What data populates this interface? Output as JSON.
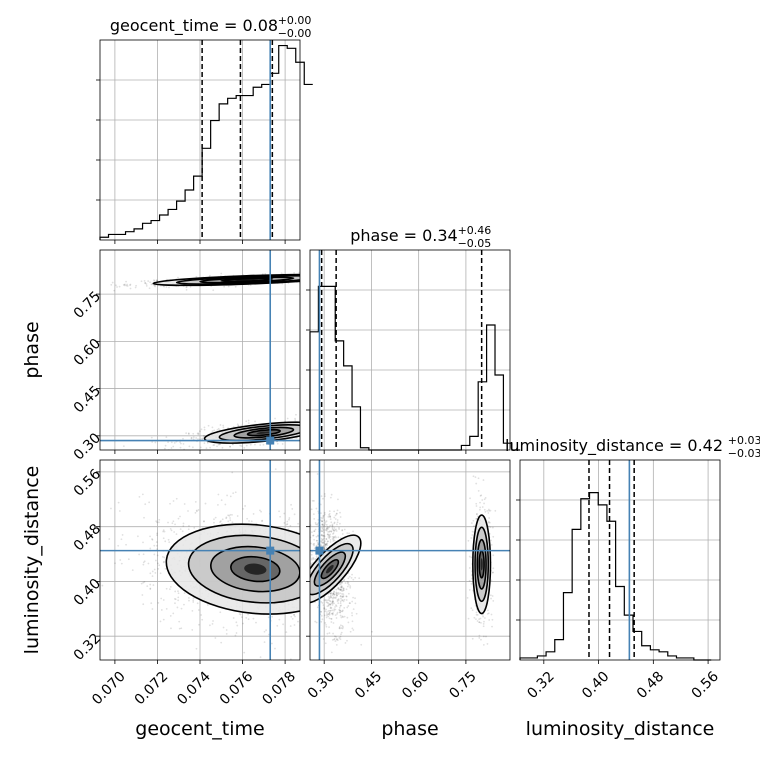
{
  "chart_data": {
    "type": "corner",
    "parameters": [
      "geocent_time",
      "phase",
      "luminosity_distance"
    ],
    "truth": {
      "geocent_time": 0.0773,
      "phase": 0.285,
      "luminosity_distance": 0.445
    },
    "panels": [
      {
        "id": "hist-geocent_time",
        "type": "histogram",
        "title": {
          "main": "geocent_time = 0.08",
          "sup": "+0.00",
          "sub": "−0.00"
        },
        "bin_edges_start": 0.0693,
        "bin_width": 0.0004,
        "heights": [
          0.01,
          0.02,
          0.02,
          0.03,
          0.04,
          0.06,
          0.07,
          0.09,
          0.11,
          0.14,
          0.18,
          0.23,
          0.33,
          0.43,
          0.49,
          0.51,
          0.52,
          0.52,
          0.55,
          0.56,
          0.6,
          0.7,
          0.69,
          0.64,
          0.56
        ],
        "quantile_lines": [
          0.0741,
          0.0759,
          0.0774
        ],
        "xlim": [
          0.0693,
          0.0787
        ],
        "ylim": [
          0,
          0.72
        ]
      },
      {
        "id": "hist-phase",
        "type": "histogram",
        "title": {
          "main": "phase = 0.34",
          "sup": "+0.46",
          "sub": "−0.05"
        },
        "bin_edges_start": 0.255,
        "bin_width": 0.0267,
        "heights": [
          0.52,
          0.72,
          0.72,
          0.48,
          0.37,
          0.19,
          0.01,
          0,
          0,
          0,
          0,
          0,
          0,
          0,
          0,
          0,
          0,
          0,
          0.02,
          0.06,
          0.3,
          0.55,
          0.33,
          0.03,
          0
        ],
        "quantile_lines": [
          0.292,
          0.338,
          0.8
        ],
        "xlim": [
          0.255,
          0.89
        ],
        "ylim": [
          0,
          0.88
        ]
      },
      {
        "id": "hist-luminosity_distance",
        "type": "histogram",
        "title": {
          "main": "luminosity_distance = 0.42",
          "sup": "+0.03",
          "sub": "−0.03"
        },
        "bin_edges_start": 0.2852,
        "bin_width": 0.0127,
        "heights": [
          0.01,
          0.01,
          0.02,
          0.04,
          0.1,
          0.33,
          0.64,
          0.79,
          0.82,
          0.76,
          0.68,
          0.36,
          0.22,
          0.14,
          0.07,
          0.05,
          0.04,
          0.02,
          0.01,
          0.01,
          0,
          0
        ],
        "quantile_lines": [
          0.386,
          0.416,
          0.452
        ],
        "xlim": [
          0.2852,
          0.5774
        ],
        "ylim": [
          0,
          0.98
        ]
      },
      {
        "id": "2d-geocent_time-phase",
        "type": "2d-density",
        "x": "geocent_time",
        "y": "phase",
        "xlim": [
          0.0693,
          0.0787
        ],
        "ylim": [
          0.255,
          0.89
        ],
        "modes": [
          {
            "x": 0.0762,
            "y": 0.795,
            "sx": 0.0022,
            "sy": 0.008,
            "rho": 0.7,
            "weight": 0.45
          },
          {
            "x": 0.077,
            "y": 0.31,
            "sx": 0.0014,
            "sy": 0.016,
            "rho": 0.6,
            "weight": 0.55
          }
        ]
      },
      {
        "id": "2d-geocent_time-luminosity_distance",
        "type": "2d-density",
        "x": "geocent_time",
        "y": "luminosity_distance",
        "xlim": [
          0.0693,
          0.0787
        ],
        "ylim": [
          0.2852,
          0.5774
        ],
        "modes": [
          {
            "x": 0.0766,
            "y": 0.418,
            "sx": 0.0021,
            "sy": 0.034,
            "rho": -0.2,
            "weight": 1
          }
        ]
      },
      {
        "id": "2d-phase-luminosity_distance",
        "type": "2d-density",
        "x": "phase",
        "y": "luminosity_distance",
        "xlim": [
          0.255,
          0.89
        ],
        "ylim": [
          0.2852,
          0.5774
        ],
        "modes": [
          {
            "x": 0.318,
            "y": 0.418,
            "sx": 0.025,
            "sy": 0.034,
            "rho": -0.3,
            "weight": 0.72
          },
          {
            "x": 0.8,
            "y": 0.425,
            "sx": 0.014,
            "sy": 0.036,
            "rho": 0,
            "weight": 0.28
          }
        ]
      }
    ],
    "axes": {
      "geocent_time": {
        "label": "geocent_time",
        "ticks": [
          0.07,
          0.072,
          0.074,
          0.076,
          0.078
        ],
        "tick_labels": [
          "0.070",
          "0.072",
          "0.074",
          "0.076",
          "0.078"
        ]
      },
      "phase": {
        "label": "phase",
        "ticks": [
          0.3,
          0.45,
          0.6,
          0.75
        ],
        "tick_labels": [
          "0.30",
          "0.45",
          "0.60",
          "0.75"
        ]
      },
      "luminosity_distance": {
        "label": "luminosity_distance",
        "ticks": [
          0.32,
          0.4,
          0.48,
          0.56
        ],
        "tick_labels": [
          "0.32",
          "0.40",
          "0.48",
          "0.56"
        ]
      }
    },
    "grid": true,
    "colors": {
      "truth": "#4682b4",
      "hist": "#000000",
      "quantile": "#000000",
      "density": "#000000",
      "grid": "#b0b0b0"
    }
  }
}
